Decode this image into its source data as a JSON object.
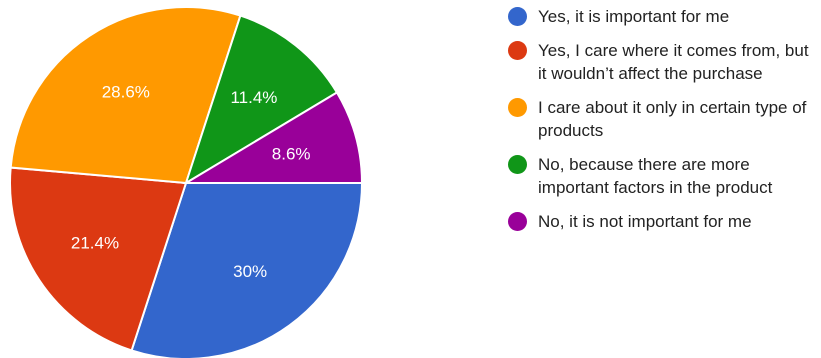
{
  "chart_data": {
    "type": "pie",
    "title": "",
    "slices": [
      {
        "label": "Yes, it is important for me",
        "value": 30,
        "display": "30%",
        "color": "#3366cc"
      },
      {
        "label": "Yes, I care where it comes from, but it wouldn’t affect the purchase",
        "value": 21.4,
        "display": "21.4%",
        "color": "#dc3912"
      },
      {
        "label": "I care about it only in certain type of products",
        "value": 28.6,
        "display": "28.6%",
        "color": "#ff9900"
      },
      {
        "label": "No, because there are more important factors in the product",
        "value": 11.4,
        "display": "11.4%",
        "color": "#109618"
      },
      {
        "label": "No, it is not important for me",
        "value": 8.6,
        "display": "8.6%",
        "color": "#990099"
      }
    ],
    "legend_position": "right"
  }
}
